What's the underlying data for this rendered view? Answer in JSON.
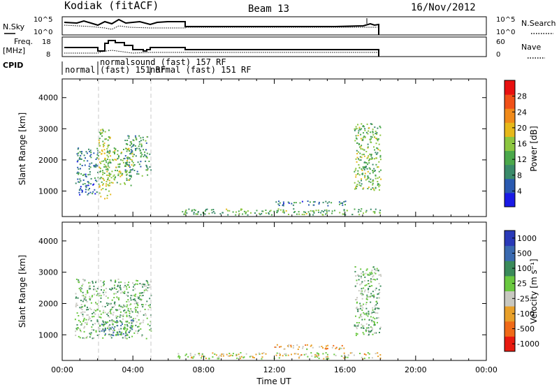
{
  "header": {
    "station": "Kodiak (fitACF)",
    "beam": "Beam 13",
    "date": "16/Nov/2012"
  },
  "summary_panels": {
    "nsky_label": "N.Sky",
    "nsky_ticks": [
      "10^5",
      "10^0"
    ],
    "nsearch_label": "N.Search",
    "nsearch_ticks": [
      "10^5",
      "10^0"
    ],
    "freq_label_line1": "Freq.",
    "freq_label_line2": "[MHz]",
    "freq_ticks": [
      "18",
      "8"
    ],
    "nave_label": "Nave",
    "nave_ticks": [
      "60",
      "0"
    ],
    "cpid_label": "CPID",
    "cpid_segments": [
      {
        "text": "normal"
      },
      {
        "text": "normalsound (fast) 157 RF"
      },
      {
        "text": "(fast) 151 RF"
      },
      {
        "text": "normal (fast) 151 RF"
      }
    ]
  },
  "chart_data": [
    {
      "type": "heatmap",
      "title": "",
      "xlabel": "",
      "ylabel": "Slant Range [km]",
      "xlim": [
        0,
        24
      ],
      "ylim": [
        180,
        4600
      ],
      "yticks": [
        "1000",
        "2000",
        "3000",
        "4000"
      ],
      "colorbar": {
        "label": "Power [dB]",
        "ticks": [
          "4",
          "8",
          "12",
          "16",
          "20",
          "24",
          "28"
        ],
        "colors": [
          "#1a1ae6",
          "#2a5ab0",
          "#3a8a6a",
          "#4ba84b",
          "#8cc640",
          "#e6b81a",
          "#f08a1a",
          "#f05018",
          "#e81010"
        ],
        "range": [
          0,
          30
        ]
      },
      "scatter_regions": [
        {
          "t0": 0.7,
          "t1": 2.0,
          "r0": 900,
          "r1": 1300,
          "level": 0.25
        },
        {
          "t0": 0.8,
          "t1": 2.0,
          "r0": 1300,
          "r1": 2400,
          "level": 0.3
        },
        {
          "t0": 2.0,
          "t1": 2.7,
          "r0": 700,
          "r1": 3000,
          "level": 0.55
        },
        {
          "t0": 2.5,
          "t1": 4.0,
          "r0": 1200,
          "r1": 2400,
          "level": 0.5
        },
        {
          "t0": 3.5,
          "t1": 5.0,
          "r0": 1500,
          "r1": 2800,
          "level": 0.35
        },
        {
          "t0": 6.5,
          "t1": 18.0,
          "r0": 250,
          "r1": 450,
          "level": 0.45
        },
        {
          "t0": 12.0,
          "t1": 16.0,
          "r0": 550,
          "r1": 700,
          "level": 0.3
        },
        {
          "t0": 16.5,
          "t1": 18.0,
          "r0": 1000,
          "r1": 3200,
          "level": 0.5
        }
      ]
    },
    {
      "type": "heatmap",
      "title": "",
      "xlabel": "Time UT",
      "ylabel": "Slant Range [km]",
      "xlim": [
        0,
        24
      ],
      "ylim": [
        180,
        4600
      ],
      "yticks": [
        "1000",
        "2000",
        "3000",
        "4000"
      ],
      "xticks": [
        "00:00",
        "04:00",
        "08:00",
        "12:00",
        "16:00",
        "20:00",
        "00:00"
      ],
      "colorbar": {
        "label": "Velocity [m s⁻¹]",
        "ticks": [
          "1000",
          "500",
          "100",
          "25",
          "-25",
          "-100",
          "-500",
          "-1000"
        ],
        "colors": [
          "#2a3ab8",
          "#3a6ab0",
          "#3a8a5a",
          "#6ac840",
          "#c8c8c0",
          "#e8a02a",
          "#f06a18",
          "#e81a10"
        ],
        "range": [
          -1000,
          1000
        ]
      },
      "scatter_regions": [
        {
          "t0": 0.7,
          "t1": 5.0,
          "r0": 900,
          "r1": 2800,
          "level": 0.5
        },
        {
          "t0": 2.2,
          "t1": 4.0,
          "r0": 1000,
          "r1": 1500,
          "level": 0.35
        },
        {
          "t0": 6.5,
          "t1": 18.0,
          "r0": 250,
          "r1": 450,
          "level": 0.65
        },
        {
          "t0": 12.0,
          "t1": 16.0,
          "r0": 550,
          "r1": 700,
          "level": 0.75
        },
        {
          "t0": 16.5,
          "t1": 18.0,
          "r0": 1000,
          "r1": 3200,
          "level": 0.5
        }
      ]
    }
  ]
}
